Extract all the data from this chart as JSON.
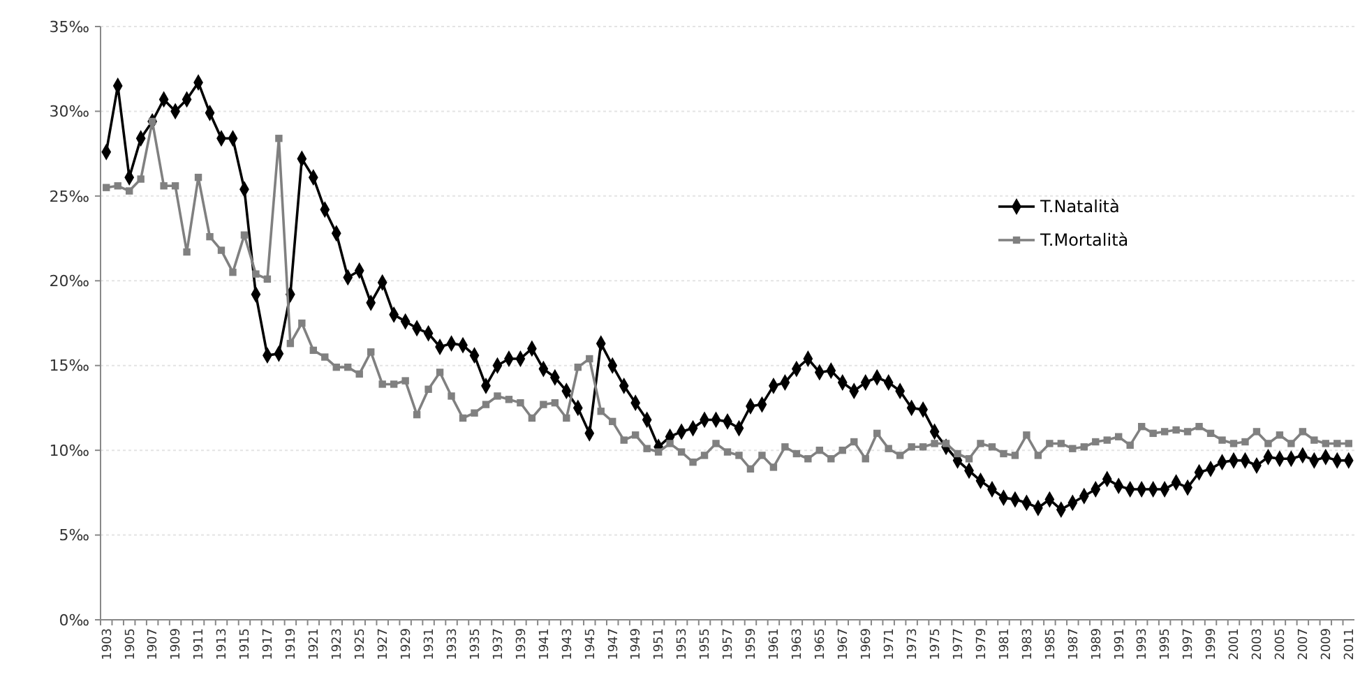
{
  "chart_data": {
    "type": "line",
    "categories": [
      "1903",
      null,
      "1905",
      null,
      "1907",
      null,
      "1909",
      null,
      "1911",
      null,
      "1913",
      null,
      "1915",
      null,
      "1917",
      null,
      "1919",
      null,
      "1921",
      null,
      "1923",
      null,
      "1925",
      null,
      "1927",
      null,
      "1929",
      null,
      "1931",
      null,
      "1933",
      null,
      "1935",
      null,
      "1937",
      null,
      "1939",
      null,
      "1941",
      null,
      "1943",
      null,
      "1945",
      null,
      "1947",
      null,
      "1949",
      null,
      "1951",
      null,
      "1953",
      null,
      "1955",
      null,
      "1957",
      null,
      "1959",
      null,
      "1961",
      null,
      "1963",
      null,
      "1965",
      null,
      "1967",
      null,
      "1969",
      null,
      "1971",
      null,
      "1973",
      null,
      "1975",
      null,
      "1977",
      null,
      "1979",
      null,
      "1981",
      null,
      "1983",
      null,
      "1985",
      null,
      "1987",
      null,
      "1989",
      null,
      "1991",
      null,
      "1993",
      null,
      "1995",
      null,
      "1997",
      null,
      "1999",
      null,
      "2001",
      null,
      "2003",
      null,
      "2005",
      null,
      "2007",
      null,
      "2009",
      null,
      "2011"
    ],
    "series": [
      {
        "name": "T.Natalità",
        "color": "#000000",
        "marker": "diamond",
        "values": [
          27.6,
          31.5,
          26.1,
          28.4,
          29.4,
          30.7,
          30.0,
          30.7,
          31.7,
          29.9,
          28.4,
          28.4,
          25.4,
          19.2,
          15.6,
          15.7,
          19.2,
          27.2,
          26.1,
          24.2,
          22.8,
          20.2,
          20.6,
          18.7,
          19.9,
          18.0,
          17.6,
          17.2,
          16.9,
          16.1,
          16.3,
          16.2,
          15.6,
          13.8,
          15.0,
          15.4,
          15.4,
          16.0,
          14.8,
          14.3,
          13.5,
          12.5,
          11.0,
          16.3,
          15.0,
          13.8,
          12.8,
          11.8,
          10.2,
          10.8,
          11.1,
          11.3,
          11.8,
          11.8,
          11.7,
          11.3,
          12.6,
          12.7,
          13.8,
          14.0,
          14.8,
          15.4,
          14.6,
          14.7,
          14.0,
          13.5,
          14.0,
          14.3,
          14.0,
          13.5,
          12.5,
          12.4,
          11.1,
          10.2,
          9.4,
          8.8,
          8.2,
          7.7,
          7.2,
          7.1,
          6.9,
          6.6,
          7.1,
          6.5,
          6.9,
          7.3,
          7.7,
          8.3,
          7.9,
          7.7,
          7.7,
          7.7,
          7.7,
          8.1,
          7.8,
          8.7,
          8.9,
          9.3,
          9.4,
          9.4,
          9.1,
          9.6,
          9.5,
          9.5,
          9.7,
          9.4,
          9.6,
          9.4,
          9.4
        ]
      },
      {
        "name": "T.Mortalità",
        "color": "#808080",
        "marker": "square",
        "values": [
          25.5,
          25.6,
          25.3,
          26.0,
          29.4,
          25.6,
          25.6,
          21.7,
          26.1,
          22.6,
          21.8,
          20.5,
          22.7,
          20.4,
          20.1,
          28.4,
          16.3,
          17.5,
          15.9,
          15.5,
          14.9,
          14.9,
          14.5,
          15.8,
          13.9,
          13.9,
          14.1,
          12.1,
          13.6,
          14.6,
          13.2,
          11.9,
          12.2,
          12.7,
          13.2,
          13.0,
          12.8,
          11.9,
          12.7,
          12.8,
          11.9,
          14.9,
          15.4,
          12.3,
          11.7,
          10.6,
          10.9,
          10.1,
          9.9,
          10.4,
          9.9,
          9.3,
          9.7,
          10.4,
          9.9,
          9.7,
          8.9,
          9.7,
          9.0,
          10.2,
          9.8,
          9.5,
          10.0,
          9.5,
          10.0,
          10.5,
          9.5,
          11.0,
          10.1,
          9.7,
          10.2,
          10.2,
          10.4,
          10.4,
          9.8,
          9.5,
          10.4,
          10.2,
          9.8,
          9.7,
          10.9,
          9.7,
          10.4,
          10.4,
          10.1,
          10.2,
          10.5,
          10.6,
          10.8,
          10.3,
          11.4,
          11.0,
          11.1,
          11.2,
          11.1,
          11.4,
          11.0,
          10.6,
          10.4,
          10.5,
          11.1,
          10.4,
          10.9,
          10.4,
          11.1,
          10.6,
          10.4,
          10.4,
          10.4
        ]
      }
    ],
    "ylim": [
      0,
      35
    ],
    "yticks": [
      {
        "value": 0,
        "label": "0‰"
      },
      {
        "value": 5,
        "label": "5‰"
      },
      {
        "value": 10,
        "label": "10‰"
      },
      {
        "value": 15,
        "label": "15‰"
      },
      {
        "value": 20,
        "label": "20‰"
      },
      {
        "value": 25,
        "label": "25‰"
      },
      {
        "value": 30,
        "label": "30‰"
      },
      {
        "value": 35,
        "label": "35‰"
      }
    ],
    "grid": "y",
    "legend": "top right",
    "line_style": "solid"
  }
}
